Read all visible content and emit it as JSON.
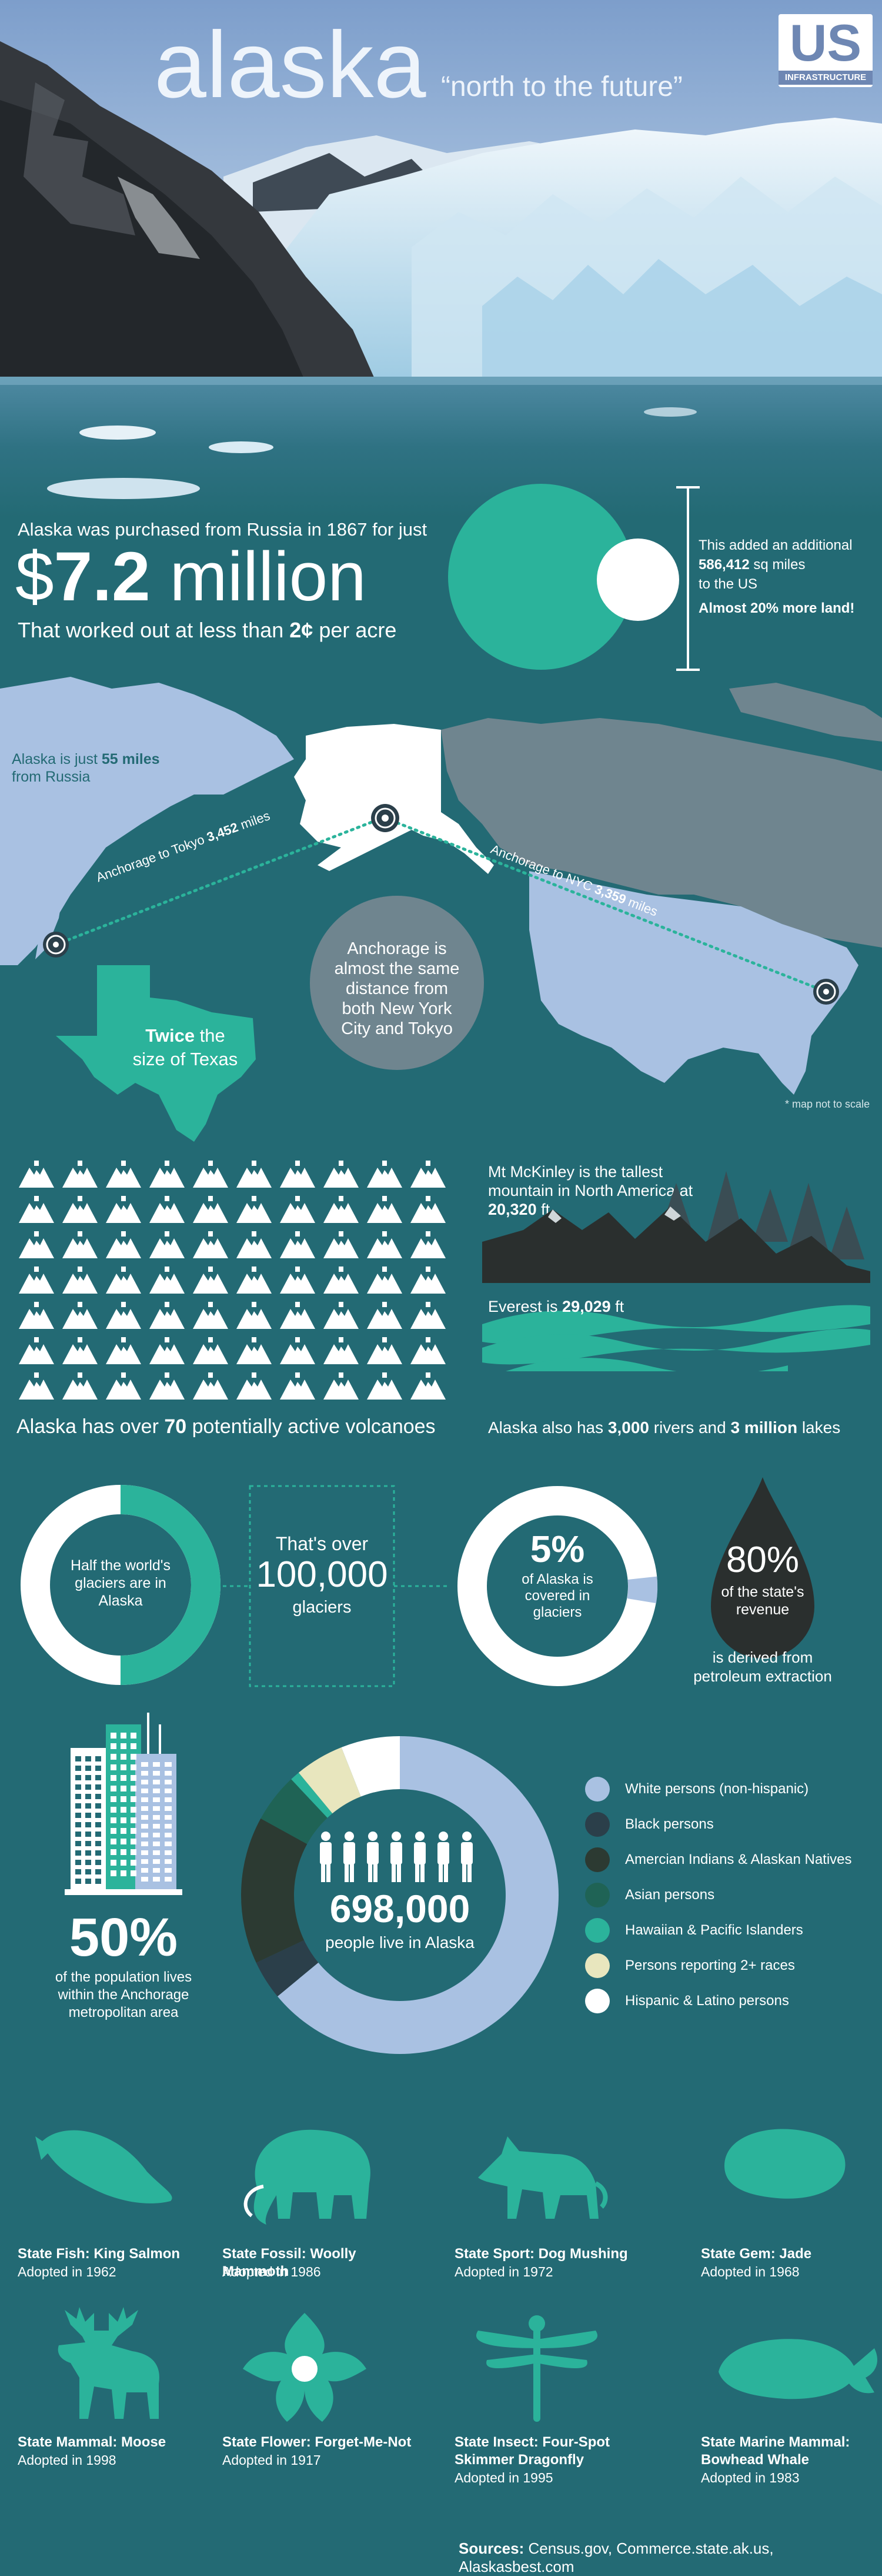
{
  "header": {
    "title": "alaska",
    "subtitle": "“north to the future”",
    "logo_big": "US",
    "logo_small": "INFRASTRUCTURE"
  },
  "purchase": {
    "line1": "Alaska was purchased from Russia in 1867 for just",
    "price_prefix": "$",
    "price_number": "7.2",
    "price_unit": " million",
    "line3_pre": "That worked out at less than ",
    "line3_bold": "2¢",
    "line3_post": " per acre",
    "side1": "This added an additional",
    "side_bold": "586,412",
    "side2": " sq miles",
    "side3": "to the US",
    "side4": "Almost 20% more land!"
  },
  "map": {
    "russia_pre": "Alaska is just ",
    "russia_bold": "55 miles",
    "russia_post": "from Russia",
    "tokyo_pre": "Anchorage to Tokyo ",
    "tokyo_bold": "3,452",
    "tokyo_post": " miles",
    "nyc_pre": "Anchorage to NYC ",
    "nyc_bold": "3,359",
    "nyc_post": " miles",
    "bubble": "Anchorage is almost the same distance from both New York City and Tokyo",
    "texas_bold": "Twice",
    "texas_post": " the",
    "texas_line2": "size of Texas",
    "note": "* map not to scale"
  },
  "nature": {
    "volcano_pre": "Alaska has over ",
    "volcano_bold": "70",
    "volcano_post": " potentially active volcanoes",
    "mckinley": "Mt McKinley is the tallest mountain in North America at ",
    "mckinley_bold": "20,320",
    "mckinley_post": " ft",
    "everest_pre": "Everest is ",
    "everest_bold": "29,029",
    "everest_post": " ft",
    "rivers_pre": "Alaska also has ",
    "rivers_bold1": "3,000",
    "rivers_mid": " rivers and ",
    "rivers_bold2": "3 million",
    "rivers_post": " lakes"
  },
  "glaciers": {
    "half": "Half the world's glaciers are in Alaska",
    "over": "That's over",
    "count": "100,000",
    "unit": "glaciers",
    "pct": "5%",
    "pct_text": "of Alaska is covered in glaciers",
    "revenue_pct": "80%",
    "revenue_text": "of the state's revenue",
    "revenue_sub": "is derived from petroleum extraction"
  },
  "population": {
    "metro_pct": "50%",
    "metro_text": "of the population lives within the Anchorage metropolitan area",
    "count": "698,000",
    "count_text": "people live in Alaska",
    "legend": [
      {
        "label": "White persons (non-hispanic)",
        "color": "#a9c1e2"
      },
      {
        "label": "Black persons",
        "color": "#2b3f4a"
      },
      {
        "label": "Amercian Indians & Alaskan Natives",
        "color": "#2c3a32"
      },
      {
        "label": "Asian persons",
        "color": "#1f6355"
      },
      {
        "label": "Hawaiian & Pacific Islanders",
        "color": "#2bb39b"
      },
      {
        "label": "Persons reporting 2+ races",
        "color": "#e8e6be"
      },
      {
        "label": "Hispanic & Latino persons",
        "color": "#ffffff"
      }
    ]
  },
  "chart_data": {
    "type": "pie",
    "categories": [
      "White persons (non-hispanic)",
      "Black persons",
      "Amercian Indians & Alaskan Natives",
      "Asian persons",
      "Hawaiian & Pacific Islanders",
      "Persons reporting 2+ races",
      "Hispanic & Latino persons"
    ],
    "values": [
      64,
      4,
      15,
      5,
      1,
      5,
      6
    ]
  },
  "symbols": [
    {
      "title": "State Fish: King Salmon",
      "sub": "Adopted in 1962",
      "icon": "salmon-icon"
    },
    {
      "title": "State Fossil: Woolly Mammoth",
      "sub": "Adopted in 1986",
      "icon": "mammoth-icon"
    },
    {
      "title": "State Sport: Dog Mushing",
      "sub": "Adopted in 1972",
      "icon": "wolf-dog-icon"
    },
    {
      "title": "State Gem: Jade",
      "sub": "Adopted in 1968",
      "icon": "jade-icon"
    },
    {
      "title": "State Mammal: Moose",
      "sub": "Adopted in 1998",
      "icon": "moose-icon"
    },
    {
      "title": "State Flower: Forget-Me-Not",
      "sub": "Adopted in 1917",
      "icon": "flower-icon"
    },
    {
      "title": "State Insect: Four-Spot Skimmer Dragonfly",
      "sub": "Adopted in 1995",
      "icon": "dragonfly-icon"
    },
    {
      "title": "State Marine Mammal: Bowhead Whale",
      "sub": "Adopted in 1983",
      "icon": "whale-icon"
    }
  ],
  "footer": {
    "sources_label": "Sources:",
    "sources": " Census.gov, Commerce.state.ak.us, Alaskasbest.com"
  }
}
